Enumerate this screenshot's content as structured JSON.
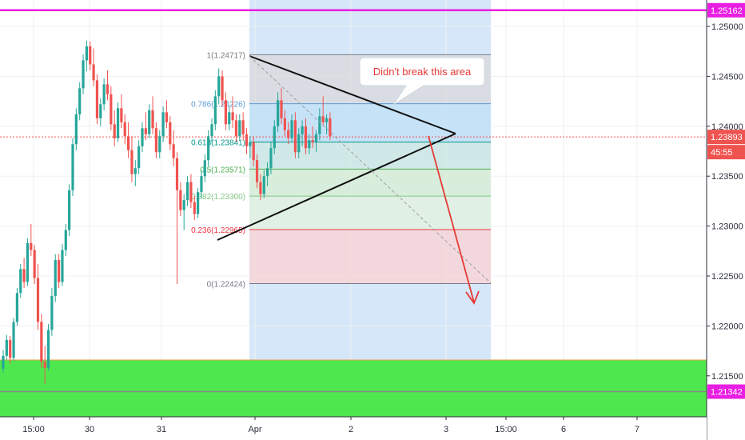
{
  "chart_data": {
    "type": "candlestick",
    "title": "",
    "xlabel": "",
    "ylabel": "",
    "ylim": [
      1.2115,
      1.2523
    ],
    "grid": true,
    "y_ticks": [
      "1.25000",
      "1.24500",
      "1.24000",
      "1.23500",
      "1.23000",
      "1.22500",
      "1.22000",
      "1.21500"
    ],
    "x_ticks": [
      "15:00",
      "30",
      "31",
      "Apr",
      "2",
      "3",
      "15:00",
      "6",
      "7"
    ],
    "series": [
      {
        "values": [
          [
            1.2157,
            1.2176,
            1.2153,
            1.217
          ],
          [
            1.217,
            1.2191,
            1.2166,
            1.2186
          ],
          [
            1.2186,
            1.219,
            1.2162,
            1.2168
          ],
          [
            1.2168,
            1.2208,
            1.2165,
            1.2204
          ],
          [
            1.2204,
            1.2238,
            1.22,
            1.2233
          ],
          [
            1.2233,
            1.2262,
            1.2228,
            1.2257
          ],
          [
            1.2257,
            1.2268,
            1.2238,
            1.2244
          ],
          [
            1.2244,
            1.2288,
            1.224,
            1.2283
          ],
          [
            1.2283,
            1.2302,
            1.227,
            1.2276
          ],
          [
            1.2276,
            1.2281,
            1.2242,
            1.2248
          ],
          [
            1.2248,
            1.2262,
            1.2196,
            1.2204
          ],
          [
            1.2204,
            1.2212,
            1.2158,
            1.2164
          ],
          [
            1.2164,
            1.218,
            1.2142,
            1.2158
          ],
          [
            1.2158,
            1.2202,
            1.2155,
            1.2196
          ],
          [
            1.2196,
            1.2238,
            1.219,
            1.223
          ],
          [
            1.223,
            1.2272,
            1.2224,
            1.2266
          ],
          [
            1.2266,
            1.2272,
            1.2238,
            1.2244
          ],
          [
            1.2244,
            1.2282,
            1.224,
            1.2276
          ],
          [
            1.2276,
            1.2302,
            1.227,
            1.2296
          ],
          [
            1.2296,
            1.2342,
            1.229,
            1.2336
          ],
          [
            1.2336,
            1.2388,
            1.233,
            1.2382
          ],
          [
            1.2382,
            1.2418,
            1.2376,
            1.2412
          ],
          [
            1.2412,
            1.2444,
            1.2406,
            1.2438
          ],
          [
            1.2438,
            1.2472,
            1.2432,
            1.2466
          ],
          [
            1.2466,
            1.2486,
            1.2455,
            1.248
          ],
          [
            1.248,
            1.2485,
            1.2456,
            1.2462
          ],
          [
            1.2462,
            1.2478,
            1.244,
            1.2446
          ],
          [
            1.2446,
            1.2452,
            1.2402,
            1.2408
          ],
          [
            1.2408,
            1.2428,
            1.24,
            1.2422
          ],
          [
            1.2422,
            1.2448,
            1.2416,
            1.2442
          ],
          [
            1.2442,
            1.2456,
            1.2426,
            1.2432
          ],
          [
            1.2432,
            1.244,
            1.2396,
            1.2402
          ],
          [
            1.2402,
            1.2416,
            1.238,
            1.2388
          ],
          [
            1.2388,
            1.2424,
            1.2384,
            1.2418
          ],
          [
            1.2418,
            1.2432,
            1.2398,
            1.2404
          ],
          [
            1.2404,
            1.2412,
            1.2382,
            1.239
          ],
          [
            1.239,
            1.2404,
            1.2368,
            1.2376
          ],
          [
            1.2376,
            1.239,
            1.2344,
            1.2352
          ],
          [
            1.2352,
            1.2366,
            1.234,
            1.2358
          ],
          [
            1.2358,
            1.2386,
            1.2352,
            1.238
          ],
          [
            1.238,
            1.2404,
            1.2374,
            1.2398
          ],
          [
            1.2398,
            1.2414,
            1.2386,
            1.2392
          ],
          [
            1.2392,
            1.2422,
            1.2388,
            1.2416
          ],
          [
            1.2416,
            1.243,
            1.2392,
            1.2398
          ],
          [
            1.2398,
            1.2404,
            1.2368,
            1.2374
          ],
          [
            1.2374,
            1.2396,
            1.2368,
            1.239
          ],
          [
            1.239,
            1.242,
            1.2384,
            1.2414
          ],
          [
            1.2414,
            1.2426,
            1.2398,
            1.2404
          ],
          [
            1.2404,
            1.241,
            1.2376,
            1.2382
          ],
          [
            1.2382,
            1.2396,
            1.236,
            1.2368
          ],
          [
            1.2368,
            1.2374,
            1.2242,
            1.2336
          ],
          [
            1.2336,
            1.2344,
            1.231,
            1.2316
          ],
          [
            1.2316,
            1.2332,
            1.2296,
            1.2326
          ],
          [
            1.2326,
            1.235,
            1.232,
            1.2344
          ],
          [
            1.2344,
            1.2352,
            1.2318,
            1.2324
          ],
          [
            1.2324,
            1.233,
            1.2306,
            1.2312
          ],
          [
            1.2312,
            1.2338,
            1.2308,
            1.2334
          ],
          [
            1.2334,
            1.2356,
            1.2328,
            1.235
          ],
          [
            1.235,
            1.2372,
            1.2344,
            1.2366
          ],
          [
            1.2366,
            1.2396,
            1.236,
            1.239
          ],
          [
            1.239,
            1.2408,
            1.2384,
            1.2402
          ],
          [
            1.2402,
            1.2436,
            1.2396,
            1.243
          ],
          [
            1.243,
            1.2458,
            1.2422,
            1.245
          ],
          [
            1.245,
            1.2456,
            1.242,
            1.2426
          ],
          [
            1.2426,
            1.2434,
            1.2396,
            1.2402
          ],
          [
            1.2402,
            1.242,
            1.2396,
            1.2414
          ],
          [
            1.2414,
            1.243,
            1.2398,
            1.2406
          ],
          [
            1.2406,
            1.2412,
            1.2384,
            1.239
          ],
          [
            1.239,
            1.2412,
            1.2386,
            1.2406
          ],
          [
            1.2406,
            1.2414,
            1.2386,
            1.2392
          ],
          [
            1.2392,
            1.2398,
            1.2372,
            1.238
          ],
          [
            1.238,
            1.239,
            1.2368,
            1.2384
          ],
          [
            1.2384,
            1.239,
            1.236,
            1.2366
          ],
          [
            1.2366,
            1.2372,
            1.2338,
            1.2344
          ],
          [
            1.2344,
            1.2352,
            1.2326,
            1.2332
          ],
          [
            1.2332,
            1.2356,
            1.2328,
            1.235
          ],
          [
            1.235,
            1.2364,
            1.234,
            1.2358
          ],
          [
            1.2358,
            1.2384,
            1.2352,
            1.2378
          ],
          [
            1.2378,
            1.2406,
            1.2372,
            1.24
          ],
          [
            1.24,
            1.2434,
            1.2394,
            1.2426
          ],
          [
            1.2426,
            1.2438,
            1.2402,
            1.2408
          ],
          [
            1.2408,
            1.2416,
            1.239,
            1.2396
          ],
          [
            1.2396,
            1.2404,
            1.2382,
            1.2388
          ],
          [
            1.2388,
            1.2412,
            1.2384,
            1.2406
          ],
          [
            1.2406,
            1.2414,
            1.2368,
            1.2374
          ],
          [
            1.2374,
            1.2398,
            1.2368,
            1.2392
          ],
          [
            1.2392,
            1.2406,
            1.238,
            1.24
          ],
          [
            1.24,
            1.2408,
            1.2372,
            1.2378
          ],
          [
            1.2378,
            1.2392,
            1.2372,
            1.2386
          ],
          [
            1.2386,
            1.24,
            1.2378,
            1.2384
          ],
          [
            1.2384,
            1.2396,
            1.2374,
            1.2392
          ],
          [
            1.2392,
            1.2418,
            1.2386,
            1.241
          ],
          [
            1.241,
            1.243,
            1.24,
            1.2404
          ],
          [
            1.2404,
            1.2412,
            1.2392,
            1.2408
          ],
          [
            1.2408,
            1.2414,
            1.2386,
            1.239
          ]
        ]
      }
    ],
    "current_price": "1.23893",
    "countdown": "45:55",
    "resistance_level": "1.25162",
    "support_level": "1.21342",
    "fib_levels": [
      {
        "label": "1(1.24717)",
        "value": 1.24717,
        "color": "#787b86"
      },
      {
        "label": "0.786(1.24226)",
        "value": 1.24226,
        "color": "#5b9bd5"
      },
      {
        "label": "0.618(1.23841)",
        "value": 1.23841,
        "color": "#009688"
      },
      {
        "label": "0.5(1.23571)",
        "value": 1.23571,
        "color": "#4caf50"
      },
      {
        "label": "0.382(1.23300)",
        "value": 1.233,
        "color": "#81c784"
      },
      {
        "label": "0.236(1.22965)",
        "value": 1.22965,
        "color": "#f23645"
      },
      {
        "label": "0(1.22424)",
        "value": 1.22424,
        "color": "#787b86"
      }
    ],
    "annotation": "Didn't break this area"
  },
  "colors": {
    "bull": "#26a69a",
    "bear": "#ef5350",
    "resistance": "#e91ee3",
    "support_zone": "#4ee84e",
    "support_line": "#8a8a8a",
    "current_price": "#ef5350",
    "highlight_column": "#cfe3f8",
    "annotation": "#e53935"
  }
}
